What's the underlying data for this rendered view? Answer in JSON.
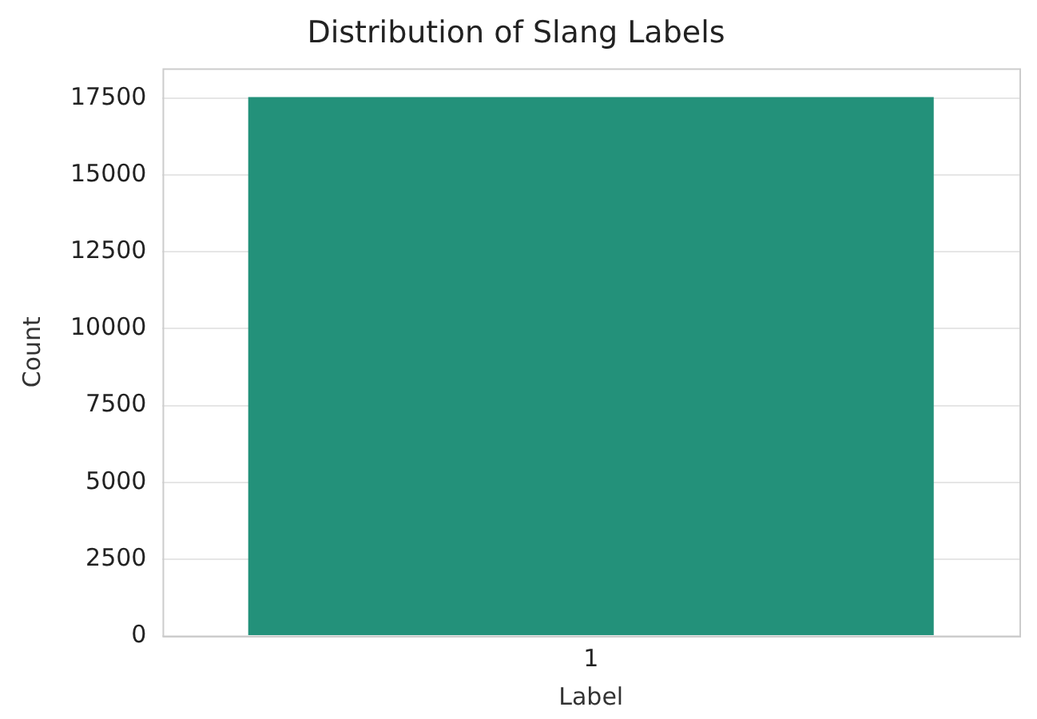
{
  "chart_data": {
    "type": "bar",
    "title": "Distribution of Slang Labels",
    "xlabel": "Label",
    "ylabel": "Count",
    "categories": [
      "1"
    ],
    "values": [
      17540
    ],
    "color": "#23917a",
    "ylim": [
      0,
      18475
    ],
    "yticks": [
      0,
      2500,
      5000,
      7500,
      10000,
      12500,
      15000,
      17500
    ],
    "grid": "y",
    "legend": false
  }
}
